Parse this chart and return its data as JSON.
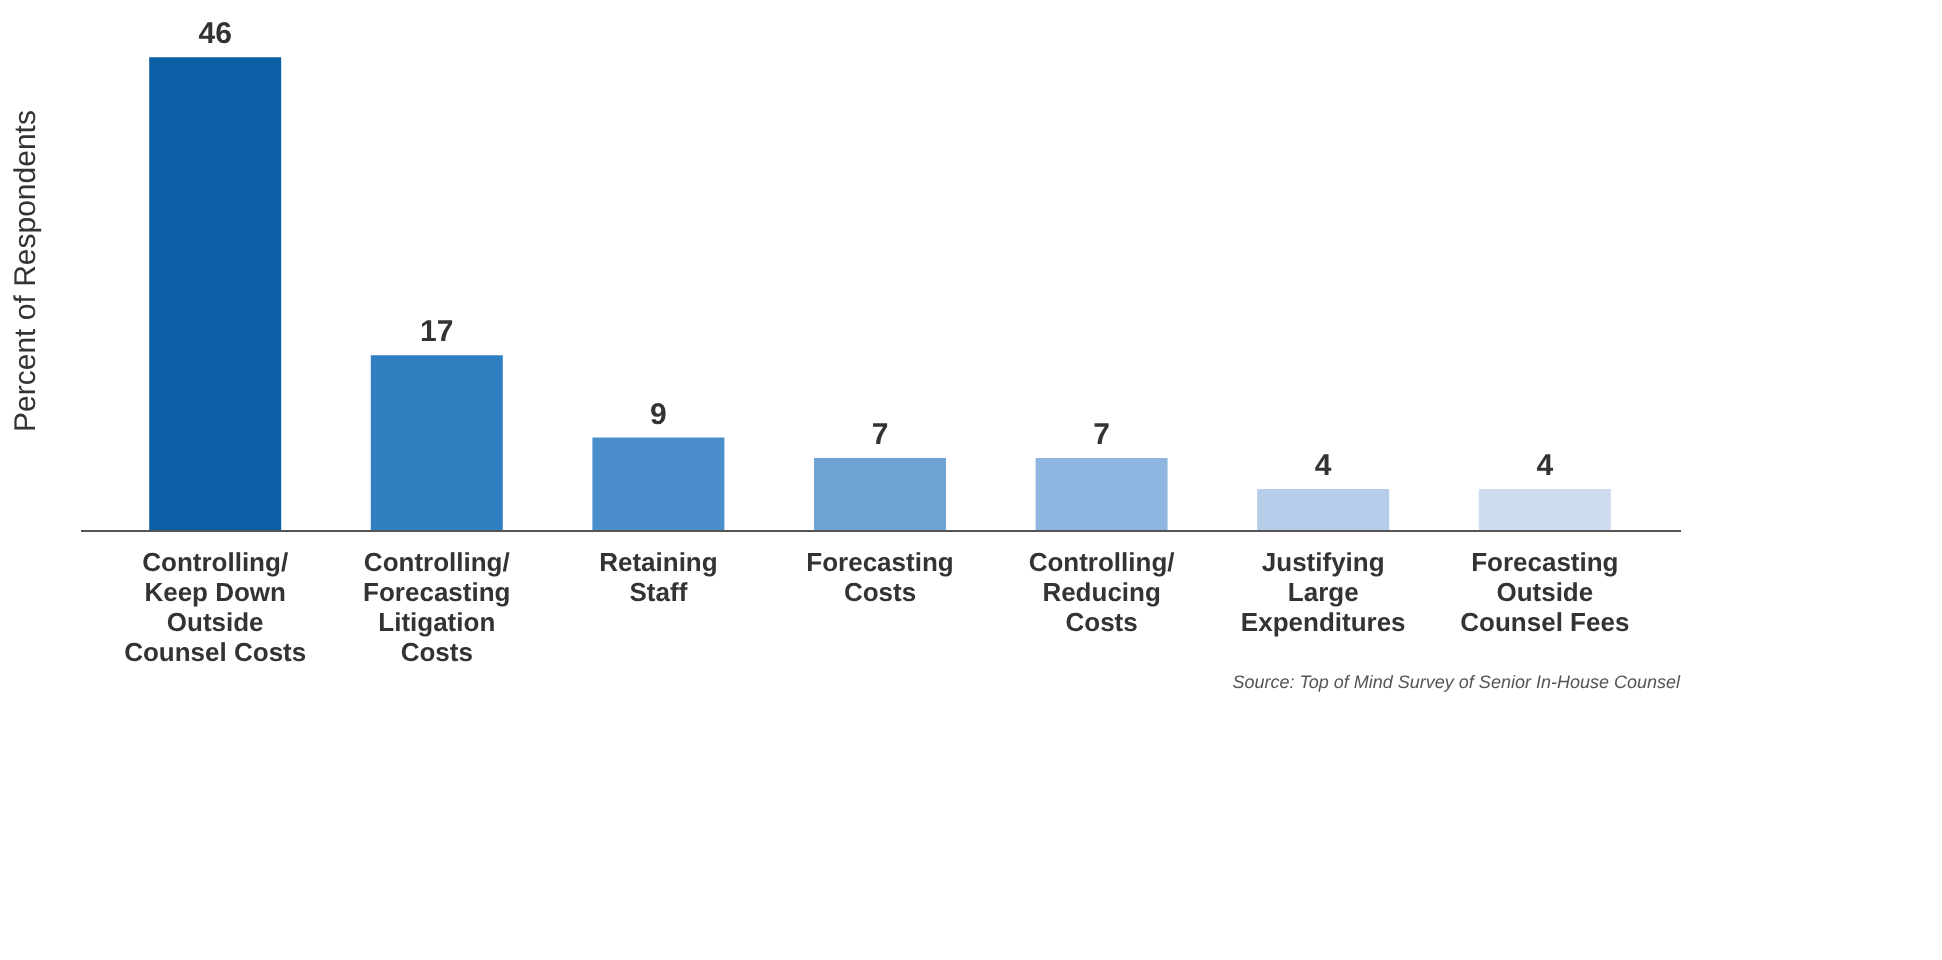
{
  "chart_data": {
    "type": "bar",
    "ylabel": "Percent of Respondents",
    "categories": [
      "Controlling/ Keep Down Outside Counsel Costs",
      "Controlling/ Forecasting Litigation Costs",
      "Retaining Staff",
      "Forecasting Costs",
      "Controlling/ Reducing Costs",
      "Justifying Large Expenditures",
      "Forecasting Outside Counsel Fees"
    ],
    "values": [
      46,
      17,
      9,
      7,
      7,
      4,
      4
    ],
    "colors": [
      "#0b5fa5",
      "#2f7fc1",
      "#4a8fcb",
      "#6fa3d6",
      "#8fb6e0",
      "#b5cde9",
      "#cddcef"
    ],
    "data_labels": true,
    "grid": false,
    "annotations": [
      "Source: Top of Mind Survey of Senior In-House Counsel"
    ]
  }
}
